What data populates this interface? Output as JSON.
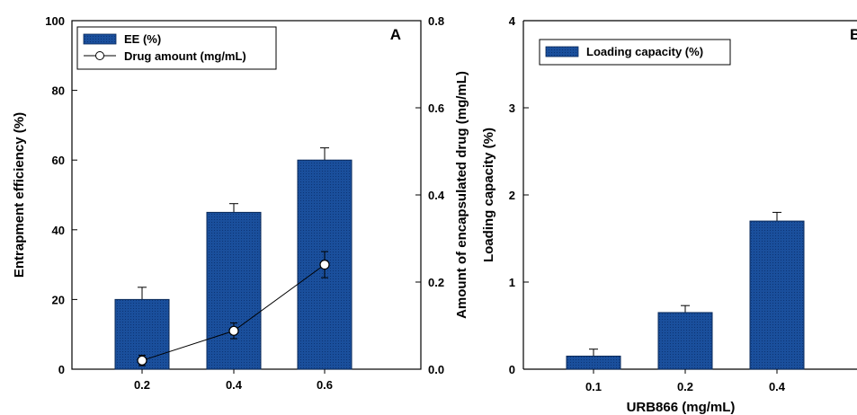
{
  "colors": {
    "bar_fill": "#1a4f9c",
    "bar_stroke": "#0a2a5a",
    "line": "#000000",
    "marker_fill": "#ffffff"
  },
  "chart_data": [
    {
      "panel": "A",
      "type": "bar",
      "categories": [
        "0.2",
        "0.4",
        "0.6"
      ],
      "series": [
        {
          "name": "EE (%)",
          "type": "bar",
          "axis": "left",
          "values": [
            20,
            45,
            60
          ],
          "errors": [
            3.5,
            2.5,
            3.5
          ]
        },
        {
          "name": "Drug amount (mg/mL)",
          "type": "line",
          "axis": "right",
          "values": [
            0.02,
            0.088,
            0.24
          ],
          "errors": [
            0.012,
            0.018,
            0.03
          ]
        }
      ],
      "ylabel": "Entrapment efficiency (%)",
      "ylim": [
        0,
        100
      ],
      "yticks": [
        "0",
        "20",
        "40",
        "60",
        "80",
        "100"
      ],
      "y2label": "Amount of encapsulated drug (mg/mL)",
      "y2lim": [
        0,
        0.8
      ],
      "y2ticks": [
        "0.0",
        "0.2",
        "0.4",
        "0.6",
        "0.8"
      ],
      "legend_position": "top-left"
    },
    {
      "panel": "B",
      "type": "bar",
      "categories": [
        "0.1",
        "0.2",
        "0.4"
      ],
      "series": [
        {
          "name": "Loading capacity (%)",
          "type": "bar",
          "axis": "left",
          "values": [
            0.15,
            0.65,
            1.7
          ],
          "errors": [
            0.08,
            0.08,
            0.1
          ]
        }
      ],
      "xlabel": "URB866 (mg/mL)",
      "ylabel": "Loading capacity (%)",
      "ylim": [
        0,
        4
      ],
      "yticks": [
        "0",
        "1",
        "2",
        "3",
        "4"
      ],
      "legend_position": "top-left"
    }
  ]
}
